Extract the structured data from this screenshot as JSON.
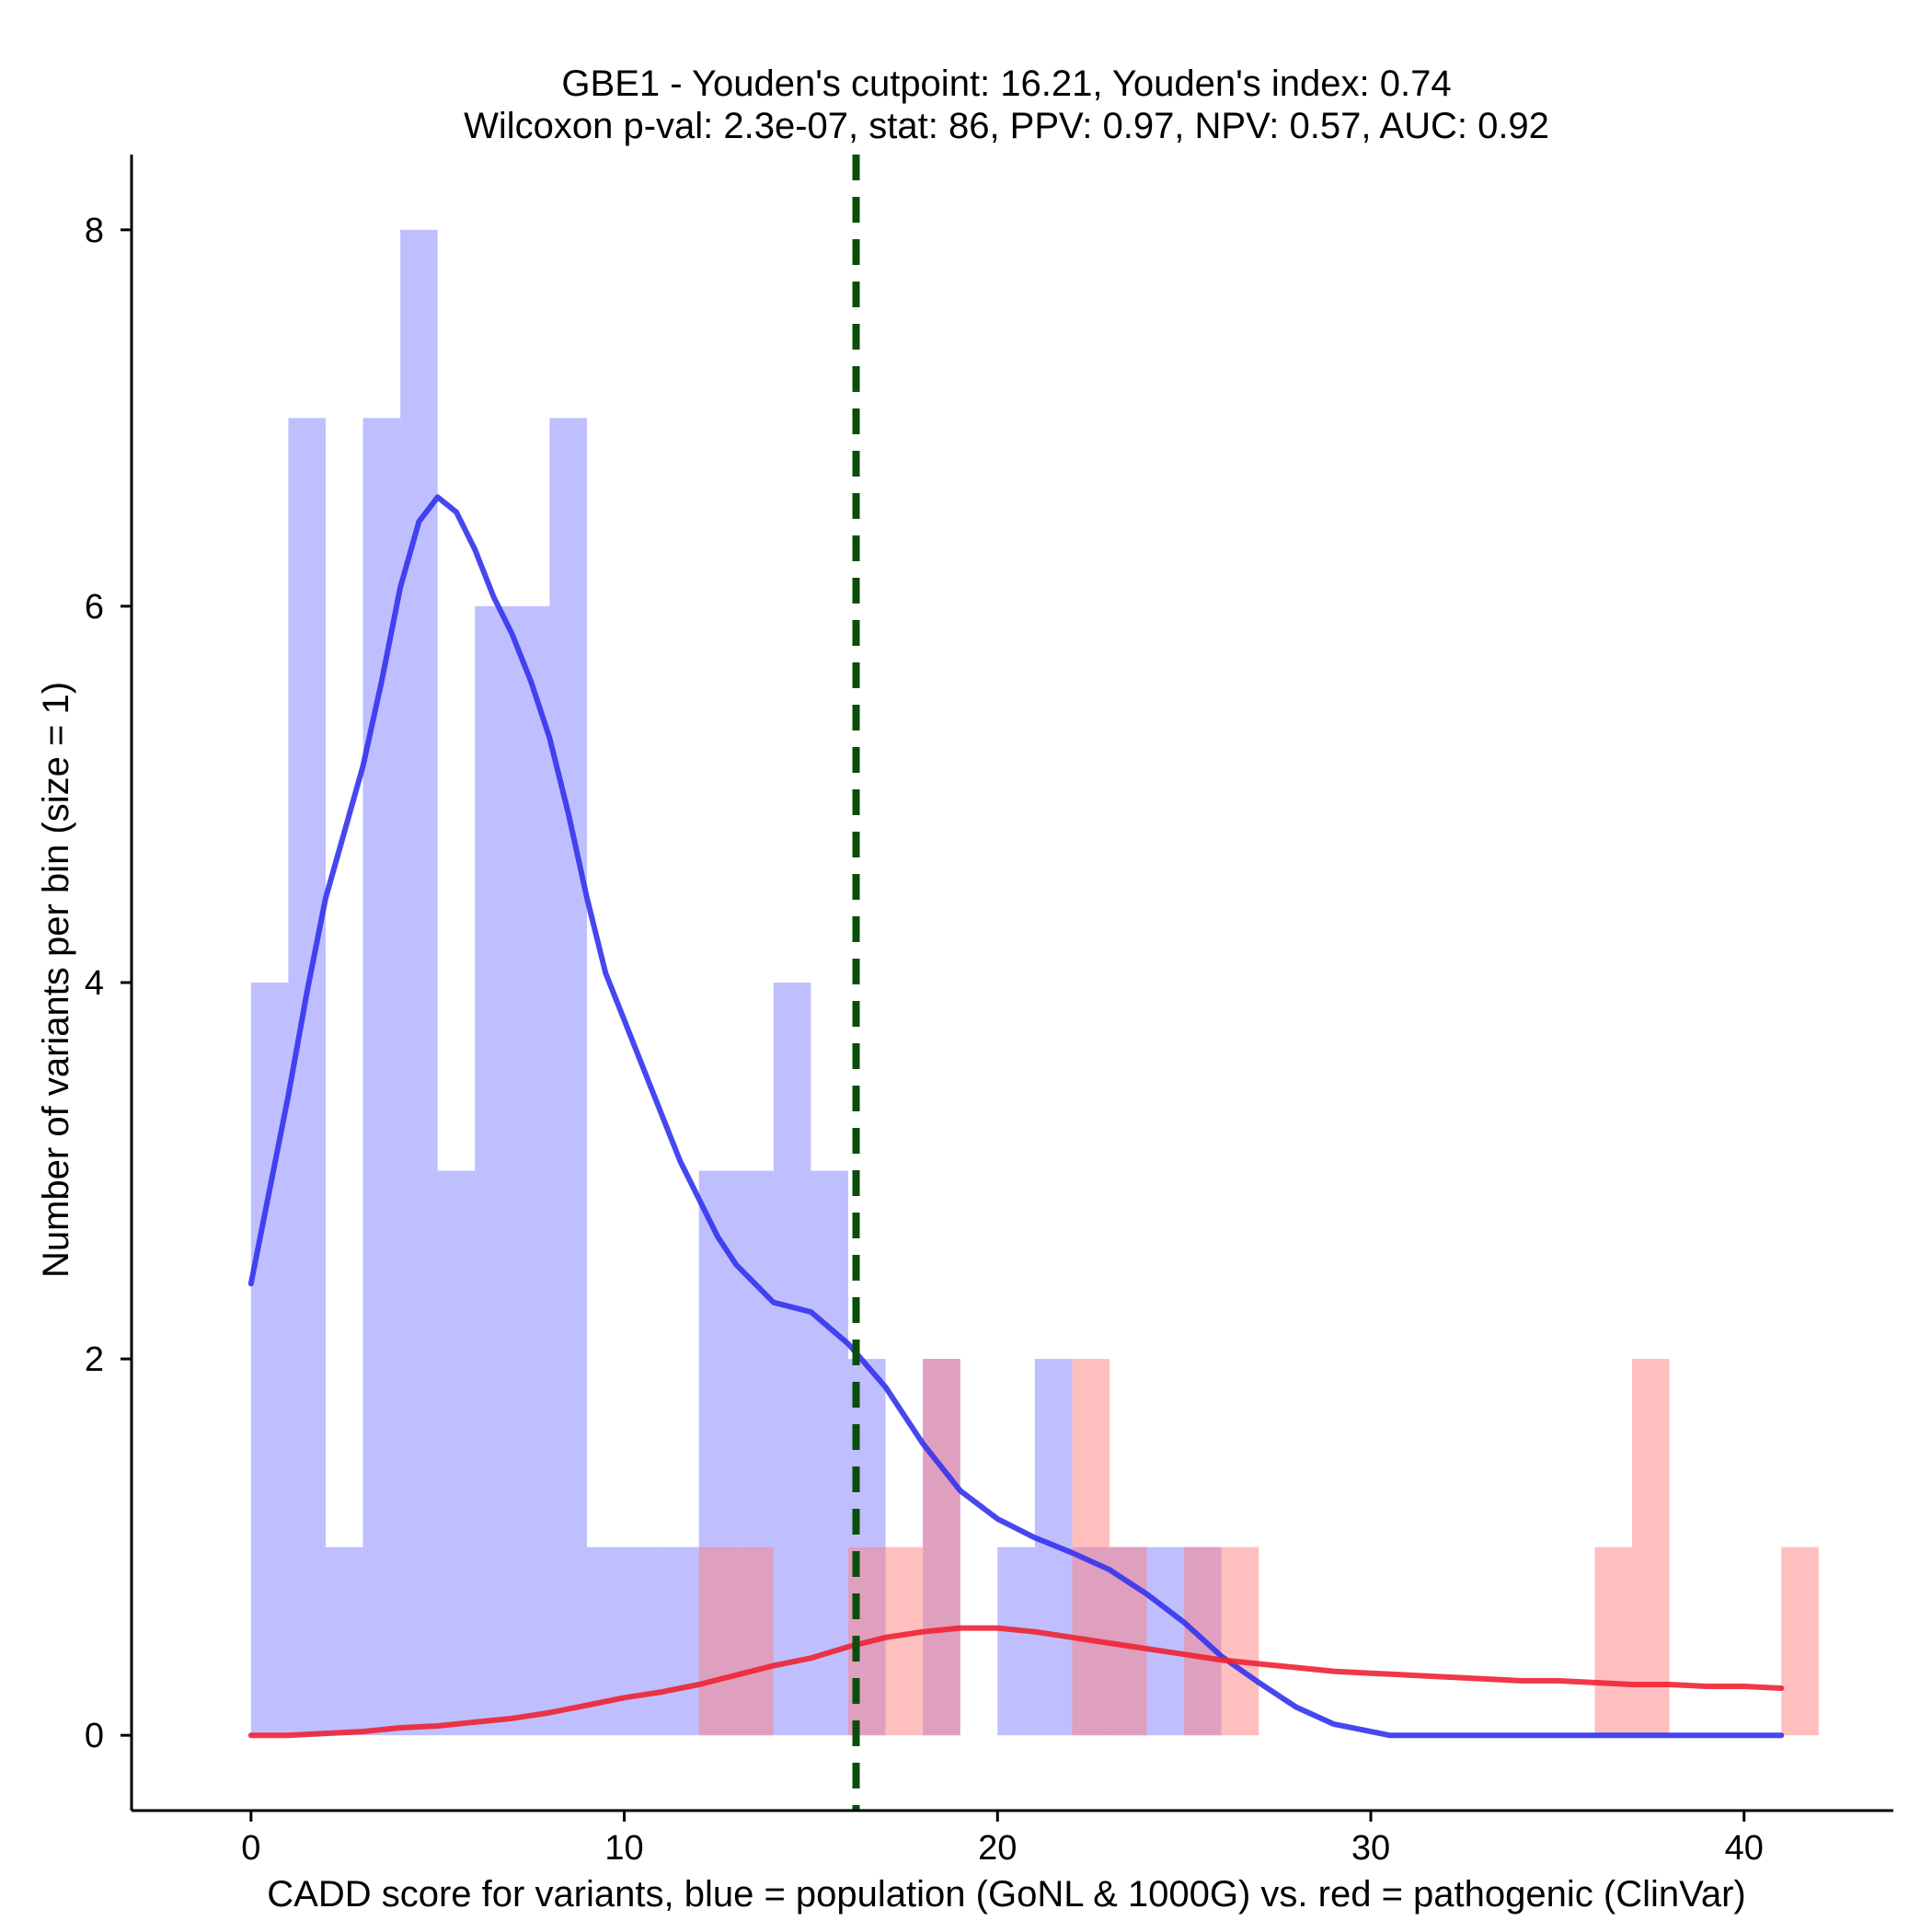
{
  "chart_data": {
    "type": "bar",
    "title": [
      "GBE1 - Youden's cutpoint: 16.21, Youden's index: 0.74",
      "Wilcoxon p-val: 2.3e-07, stat: 86, PPV: 0.97, NPV: 0.57, AUC: 0.92"
    ],
    "xlabel": "CADD score for variants, blue = population (GoNL & 1000G) vs. red = pathogenic (ClinVar)",
    "ylabel": "Number of variants per bin (size = 1)",
    "xlim": [
      -3.2,
      44
    ],
    "ylim": [
      -0.4,
      8.4
    ],
    "xticks": [
      0,
      10,
      20,
      30,
      40
    ],
    "yticks": [
      0,
      2,
      4,
      6,
      8
    ],
    "bin_size": 1,
    "series": [
      {
        "name": "population (GoNL & 1000G)",
        "color": "#8080ff",
        "bins": [
          {
            "x0": 0,
            "count": 4
          },
          {
            "x0": 1,
            "count": 7
          },
          {
            "x0": 2,
            "count": 1
          },
          {
            "x0": 3,
            "count": 7
          },
          {
            "x0": 4,
            "count": 8
          },
          {
            "x0": 5,
            "count": 3
          },
          {
            "x0": 6,
            "count": 6
          },
          {
            "x0": 7,
            "count": 6
          },
          {
            "x0": 8,
            "count": 7
          },
          {
            "x0": 9,
            "count": 1
          },
          {
            "x0": 10,
            "count": 1
          },
          {
            "x0": 11,
            "count": 1
          },
          {
            "x0": 12,
            "count": 3
          },
          {
            "x0": 13,
            "count": 3
          },
          {
            "x0": 14,
            "count": 4
          },
          {
            "x0": 15,
            "count": 3
          },
          {
            "x0": 16,
            "count": 2
          },
          {
            "x0": 18,
            "count": 2
          },
          {
            "x0": 20,
            "count": 1
          },
          {
            "x0": 21,
            "count": 2
          },
          {
            "x0": 22,
            "count": 1
          },
          {
            "x0": 23,
            "count": 1
          },
          {
            "x0": 24,
            "count": 1
          },
          {
            "x0": 25,
            "count": 1
          }
        ]
      },
      {
        "name": "pathogenic (ClinVar)",
        "color": "#ff8080",
        "bins": [
          {
            "x0": 12,
            "count": 1
          },
          {
            "x0": 13,
            "count": 1
          },
          {
            "x0": 16,
            "count": 1
          },
          {
            "x0": 17,
            "count": 1
          },
          {
            "x0": 18,
            "count": 2
          },
          {
            "x0": 22,
            "count": 2
          },
          {
            "x0": 23,
            "count": 1
          },
          {
            "x0": 25,
            "count": 1
          },
          {
            "x0": 26,
            "count": 1
          },
          {
            "x0": 36,
            "count": 1
          },
          {
            "x0": 37,
            "count": 2
          },
          {
            "x0": 41,
            "count": 1
          }
        ]
      }
    ],
    "density_lines": [
      {
        "name": "population density",
        "color": "#3333ee",
        "points": [
          [
            0,
            2.4
          ],
          [
            0.5,
            2.9
          ],
          [
            1,
            3.4
          ],
          [
            1.5,
            3.95
          ],
          [
            2,
            4.45
          ],
          [
            2.5,
            4.8
          ],
          [
            3,
            5.15
          ],
          [
            3.5,
            5.6
          ],
          [
            4,
            6.1
          ],
          [
            4.5,
            6.45
          ],
          [
            5,
            6.58
          ],
          [
            5.5,
            6.5
          ],
          [
            6,
            6.3
          ],
          [
            6.5,
            6.05
          ],
          [
            7,
            5.85
          ],
          [
            7.5,
            5.6
          ],
          [
            8,
            5.3
          ],
          [
            8.5,
            4.9
          ],
          [
            9,
            4.45
          ],
          [
            9.5,
            4.05
          ],
          [
            10,
            3.8
          ],
          [
            10.5,
            3.55
          ],
          [
            11,
            3.3
          ],
          [
            11.5,
            3.05
          ],
          [
            12,
            2.85
          ],
          [
            12.5,
            2.65
          ],
          [
            13,
            2.5
          ],
          [
            13.5,
            2.4
          ],
          [
            14,
            2.3
          ],
          [
            15,
            2.25
          ],
          [
            16,
            2.08
          ],
          [
            17,
            1.85
          ],
          [
            18,
            1.55
          ],
          [
            19,
            1.3
          ],
          [
            20,
            1.15
          ],
          [
            21,
            1.05
          ],
          [
            22,
            0.97
          ],
          [
            23,
            0.88
          ],
          [
            24,
            0.75
          ],
          [
            25,
            0.6
          ],
          [
            26,
            0.42
          ],
          [
            27,
            0.28
          ],
          [
            28,
            0.15
          ],
          [
            29,
            0.06
          ],
          [
            30,
            0.02
          ],
          [
            30.5,
            0
          ],
          [
            35,
            0
          ],
          [
            41,
            0
          ]
        ]
      },
      {
        "name": "pathogenic density",
        "color": "#ee2233",
        "points": [
          [
            0,
            0
          ],
          [
            1,
            0
          ],
          [
            2,
            0.01
          ],
          [
            3,
            0.02
          ],
          [
            4,
            0.04
          ],
          [
            5,
            0.05
          ],
          [
            6,
            0.07
          ],
          [
            7,
            0.09
          ],
          [
            8,
            0.12
          ],
          [
            9,
            0.16
          ],
          [
            10,
            0.2
          ],
          [
            11,
            0.23
          ],
          [
            12,
            0.27
          ],
          [
            13,
            0.32
          ],
          [
            14,
            0.37
          ],
          [
            15,
            0.41
          ],
          [
            16,
            0.47
          ],
          [
            17,
            0.52
          ],
          [
            18,
            0.55
          ],
          [
            19,
            0.57
          ],
          [
            20,
            0.57
          ],
          [
            21,
            0.55
          ],
          [
            22,
            0.52
          ],
          [
            23,
            0.49
          ],
          [
            24,
            0.46
          ],
          [
            25,
            0.43
          ],
          [
            26,
            0.4
          ],
          [
            27,
            0.38
          ],
          [
            28,
            0.36
          ],
          [
            29,
            0.34
          ],
          [
            30,
            0.33
          ],
          [
            31,
            0.32
          ],
          [
            32,
            0.31
          ],
          [
            33,
            0.3
          ],
          [
            34,
            0.29
          ],
          [
            35,
            0.29
          ],
          [
            36,
            0.28
          ],
          [
            37,
            0.27
          ],
          [
            38,
            0.27
          ],
          [
            39,
            0.26
          ],
          [
            40,
            0.26
          ],
          [
            41,
            0.25
          ]
        ]
      }
    ],
    "cutpoint": {
      "x": 16.21,
      "label": "Youden's cutpoint",
      "color": "#0b4d0b"
    }
  }
}
